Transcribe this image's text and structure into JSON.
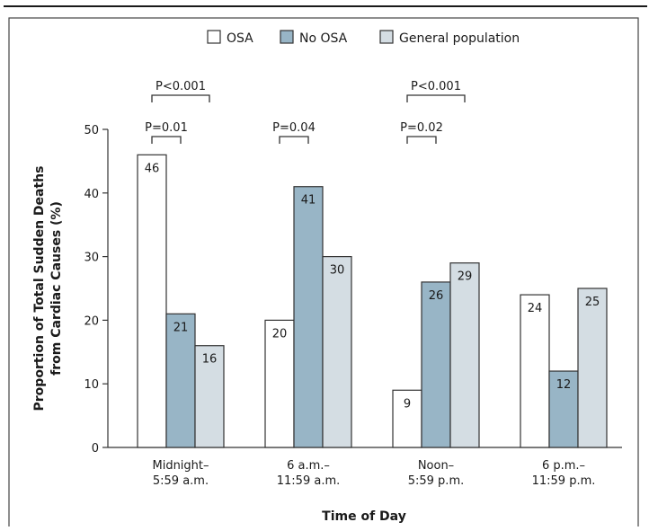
{
  "chart_data": {
    "type": "bar",
    "title": "",
    "xlabel": "Time of Day",
    "ylabel": "Proportion of Total Sudden Deaths from Cardiac Causes (%)",
    "ylabel_lines": [
      "Proportion of Total Sudden Deaths",
      "from Cardiac Causes (%)"
    ],
    "ylim": [
      0,
      50
    ],
    "yticks": [
      "0",
      "10",
      "20",
      "30",
      "40",
      "50"
    ],
    "categories": [
      "Midnight–5:59 a.m.",
      "6 a.m.–11:59 a.m.",
      "Noon–5:59 p.m.",
      "6 p.m.–11:59 p.m."
    ],
    "category_lines": [
      [
        "Midnight–",
        "5:59 a.m."
      ],
      [
        "6 a.m.–",
        "11:59 a.m."
      ],
      [
        "Noon–",
        "5:59 p.m."
      ],
      [
        "6 p.m.–",
        "11:59 p.m."
      ]
    ],
    "series": [
      {
        "name": "OSA",
        "values": [
          46,
          20,
          9,
          24
        ],
        "color": "#ffffff"
      },
      {
        "name": "No OSA",
        "values": [
          21,
          41,
          26,
          12
        ],
        "color": "#98b5c6"
      },
      {
        "name": "General population",
        "values": [
          16,
          30,
          29,
          25
        ],
        "color": "#d4dde3"
      }
    ],
    "data_labels": [
      [
        "46",
        "20",
        "9",
        "24"
      ],
      [
        "21",
        "41",
        "26",
        "12"
      ],
      [
        "16",
        "30",
        "29",
        "25"
      ]
    ],
    "legend_position": "top-center",
    "grid": false,
    "annotations": [
      {
        "text": "P<0.001",
        "category": 0,
        "from_series": 0,
        "to_series": 2
      },
      {
        "text": "P=0.01",
        "category": 0,
        "from_series": 0,
        "to_series": 1
      },
      {
        "text": "P=0.04",
        "category": 1,
        "from_series": 0,
        "to_series": 1
      },
      {
        "text": "P<0.001",
        "category": 2,
        "from_series": 0,
        "to_series": 2
      },
      {
        "text": "P=0.02",
        "category": 2,
        "from_series": 0,
        "to_series": 1
      }
    ]
  }
}
